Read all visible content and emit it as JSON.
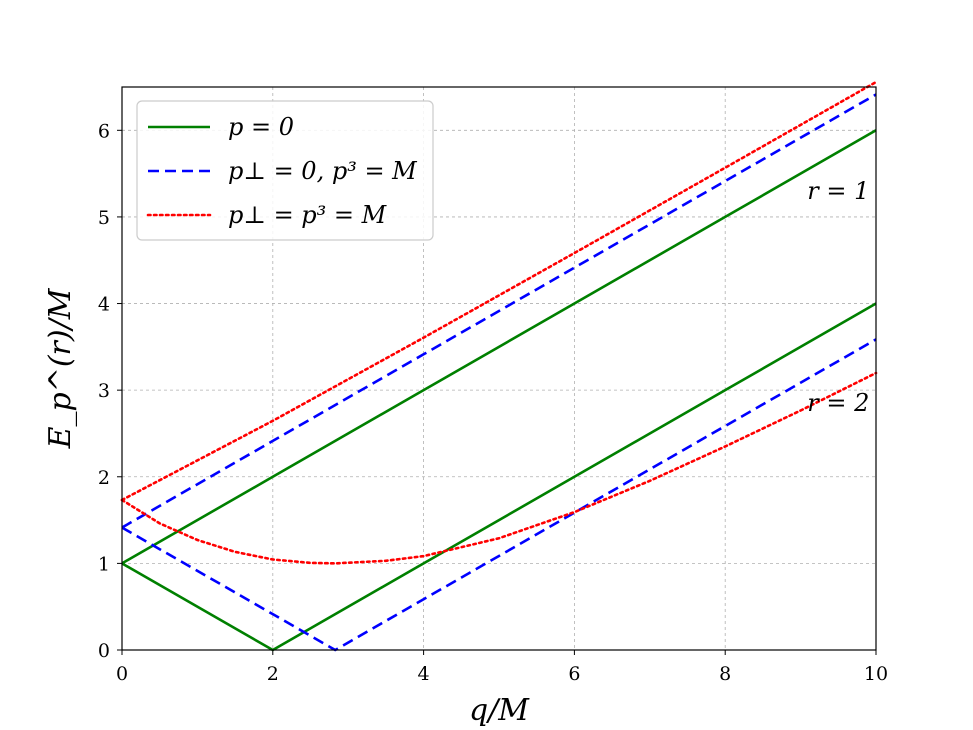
{
  "chart_data": {
    "type": "line",
    "title": "",
    "xlabel": "q/M",
    "ylabel": "E_p^(r)/M",
    "xlim": [
      0,
      10
    ],
    "ylim": [
      0,
      6.5
    ],
    "x_ticks": [
      "0",
      "2",
      "4",
      "6",
      "8",
      "10"
    ],
    "y_ticks": [
      "0",
      "1",
      "2",
      "3",
      "4",
      "5",
      "6"
    ],
    "grid": true,
    "legend_position": "top-left",
    "legend": [
      {
        "label": "p = 0",
        "color": "#008000",
        "style": "solid"
      },
      {
        "label": "p⊥ = 0, p³ = M",
        "color": "#0000ff",
        "style": "dashed"
      },
      {
        "label": "p⊥ = p³ = M",
        "color": "#ff0000",
        "style": "dotted"
      }
    ],
    "annotations": [
      {
        "text": "r = 1",
        "x": 9.5,
        "y": 5.3
      },
      {
        "text": "r = 2",
        "x": 9.5,
        "y": 2.85
      }
    ],
    "series": [
      {
        "legend_index": 0,
        "branch": "r=1",
        "color": "#008000",
        "style": "solid",
        "x": [
          0,
          2,
          4,
          6,
          8,
          10
        ],
        "y": [
          1,
          2,
          3,
          4,
          5,
          6
        ]
      },
      {
        "legend_index": 0,
        "branch": "r=2",
        "color": "#008000",
        "style": "solid",
        "x": [
          0,
          2,
          4,
          6,
          8,
          10
        ],
        "y": [
          1,
          0,
          1,
          2,
          3,
          4
        ]
      },
      {
        "legend_index": 1,
        "branch": "r=1",
        "color": "#0000ff",
        "style": "dashed",
        "x": [
          0,
          2,
          4,
          6,
          8,
          10
        ],
        "y": [
          1.414,
          2.414,
          3.414,
          4.414,
          5.414,
          6.414
        ]
      },
      {
        "legend_index": 1,
        "branch": "r=2",
        "color": "#0000ff",
        "style": "dashed",
        "x": [
          0,
          2,
          2.828,
          4,
          6,
          8,
          10
        ],
        "y": [
          1.414,
          0.414,
          0,
          0.586,
          1.586,
          2.586,
          3.586
        ]
      },
      {
        "legend_index": 2,
        "branch": "r=1",
        "color": "#ff0000",
        "style": "dotted",
        "x": [
          0,
          2,
          4,
          6,
          8,
          10
        ],
        "y": [
          1.732,
          2.646,
          3.606,
          4.583,
          5.568,
          6.557
        ]
      },
      {
        "legend_index": 2,
        "branch": "r=2",
        "color": "#ff0000",
        "style": "dotted",
        "x": [
          0,
          0.5,
          1,
          1.5,
          2,
          2.5,
          2.828,
          3.5,
          4,
          5,
          6,
          7,
          8,
          9,
          10
        ],
        "y": [
          1.732,
          1.462,
          1.27,
          1.133,
          1.045,
          1.006,
          1.0,
          1.03,
          1.084,
          1.29,
          1.592,
          1.953,
          2.35,
          2.765,
          3.198
        ]
      }
    ]
  }
}
